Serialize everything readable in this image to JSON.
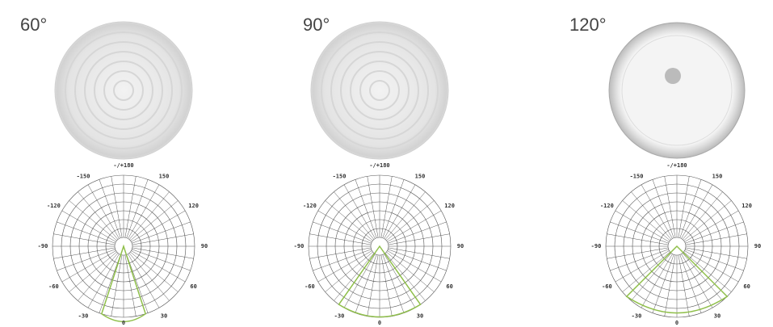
{
  "items": [
    {
      "label": "60°",
      "polar_labels": [
        "-/+180",
        "150",
        "120",
        "90",
        "60",
        "30",
        "0",
        "-30",
        "-60",
        "-90",
        "-120",
        "-150"
      ]
    },
    {
      "label": "90°",
      "polar_labels": [
        "-/+180",
        "150",
        "120",
        "90",
        "60",
        "30",
        "0",
        "-30",
        "-60",
        "-90",
        "-120",
        "-150"
      ]
    },
    {
      "label": "120°",
      "polar_labels": [
        "-/+180",
        "150",
        "120",
        "90",
        "60",
        "30",
        "0",
        "-30",
        "-60",
        "-90",
        "-120",
        "-150"
      ]
    }
  ]
}
